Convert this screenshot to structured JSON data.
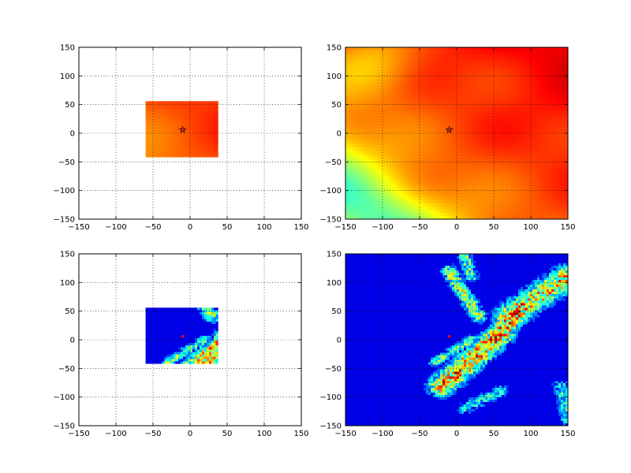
{
  "chart_data": [
    {
      "type": "heatmap",
      "title": "",
      "xlabel": "",
      "ylabel": "",
      "xlim": [
        -150,
        150
      ],
      "ylim": [
        -150,
        150
      ],
      "ticks": [
        -150,
        -100,
        -50,
        0,
        50,
        100,
        150
      ],
      "tick_labels": [
        "−150",
        "−100",
        "−50",
        "0",
        "50",
        "100",
        "150"
      ],
      "grid": true,
      "colormap": "jet",
      "field": "smooth",
      "extent": [
        -60,
        38,
        -42,
        56
      ],
      "marker": {
        "x": -10,
        "y": 6,
        "symbol": "star",
        "color": "#d62728"
      }
    },
    {
      "type": "heatmap",
      "title": "",
      "xlabel": "",
      "ylabel": "",
      "xlim": [
        -150,
        150
      ],
      "ylim": [
        -150,
        150
      ],
      "ticks": [
        -150,
        -100,
        -50,
        0,
        50,
        100,
        150
      ],
      "tick_labels": [
        "−150",
        "−100",
        "−50",
        "0",
        "50",
        "100",
        "150"
      ],
      "grid": true,
      "colormap": "jet",
      "field": "smooth",
      "extent": [
        -150,
        150,
        -150,
        150
      ],
      "marker": {
        "x": -10,
        "y": 6,
        "symbol": "star",
        "color": "#d62728"
      }
    },
    {
      "type": "heatmap",
      "title": "",
      "xlabel": "",
      "ylabel": "",
      "xlim": [
        -150,
        150
      ],
      "ylim": [
        -150,
        150
      ],
      "ticks": [
        -150,
        -100,
        -50,
        0,
        50,
        100,
        150
      ],
      "tick_labels": [
        "−150",
        "−100",
        "−50",
        "0",
        "50",
        "100",
        "150"
      ],
      "grid": true,
      "colormap": "jet",
      "field": "sparse",
      "extent": [
        -60,
        38,
        -42,
        56
      ],
      "marker": {
        "x": -10,
        "y": 6,
        "symbol": "dot",
        "color": "#ff0000"
      }
    },
    {
      "type": "heatmap",
      "title": "",
      "xlabel": "",
      "ylabel": "",
      "xlim": [
        -150,
        150
      ],
      "ylim": [
        -150,
        150
      ],
      "ticks": [
        -150,
        -100,
        -50,
        0,
        50,
        100,
        150
      ],
      "tick_labels": [
        "−150",
        "−100",
        "−50",
        "0",
        "50",
        "100",
        "150"
      ],
      "grid": true,
      "colormap": "jet",
      "field": "sparse",
      "extent": [
        -150,
        150,
        -150,
        150
      ],
      "marker": {
        "x": -10,
        "y": 6,
        "symbol": "dot",
        "color": "#ff0000"
      }
    }
  ]
}
